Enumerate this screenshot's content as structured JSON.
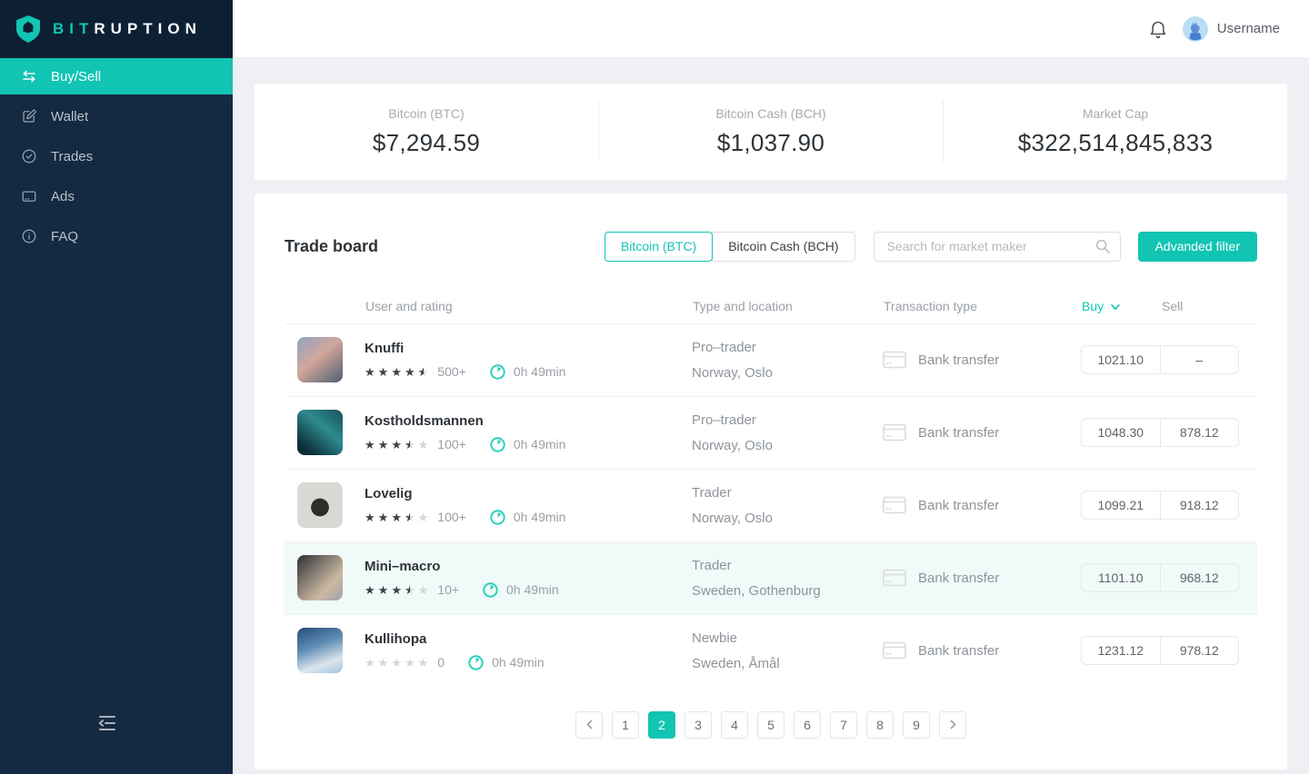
{
  "brand": {
    "primary": "BIT",
    "secondary": "RUPTION"
  },
  "colors": {
    "accent": "#12c4b3",
    "sidebar": "#142a42",
    "row_highlight": "#f0faf8"
  },
  "sidebar": {
    "items": [
      {
        "label": "Buy/Sell",
        "icon": "swap-icon",
        "active": true
      },
      {
        "label": "Wallet",
        "icon": "wallet-edit-icon",
        "active": false
      },
      {
        "label": "Trades",
        "icon": "check-circle-icon",
        "active": false
      },
      {
        "label": "Ads",
        "icon": "ads-card-icon",
        "active": false
      },
      {
        "label": "FAQ",
        "icon": "info-circle-icon",
        "active": false
      }
    ]
  },
  "header": {
    "username": "Username"
  },
  "stats": [
    {
      "label": "Bitcoin (BTC)",
      "value": "$7,294.59"
    },
    {
      "label": "Bitcoin Cash (BCH)",
      "value": "$1,037.90"
    },
    {
      "label": "Market Cap",
      "value": "$322,514,845,833"
    }
  ],
  "trade_board": {
    "title": "Trade board",
    "tabs": [
      {
        "label": "Bitcoin (BTC)",
        "active": true
      },
      {
        "label": "Bitcoin Cash (BCH)",
        "active": false
      }
    ],
    "search_placeholder": "Search for market maker",
    "filter_button": "Advanded filter",
    "columns": {
      "user": "User and rating",
      "type": "Type and location",
      "transaction": "Transaction type",
      "buy": "Buy",
      "sell": "Sell"
    },
    "rows": [
      {
        "user": "Knuffi",
        "rating": 4.5,
        "rating_count": "500+",
        "response_time": "0h 49min",
        "trader_type": "Pro–trader",
        "location": "Norway, Oslo",
        "transaction": "Bank transfer",
        "buy": "1021.10",
        "sell": "–",
        "highlighted": false
      },
      {
        "user": "Kostholdsmannen",
        "rating": 3.5,
        "rating_count": "100+",
        "response_time": "0h 49min",
        "trader_type": "Pro–trader",
        "location": "Norway, Oslo",
        "transaction": "Bank transfer",
        "buy": "1048.30",
        "sell": "878.12",
        "highlighted": false
      },
      {
        "user": "Lovelig",
        "rating": 3.5,
        "rating_count": "100+",
        "response_time": "0h 49min",
        "trader_type": "Trader",
        "location": "Norway, Oslo",
        "transaction": "Bank transfer",
        "buy": "1099.21",
        "sell": "918.12",
        "highlighted": false
      },
      {
        "user": "Mini–macro",
        "rating": 3.5,
        "rating_count": "10+",
        "response_time": "0h 49min",
        "trader_type": "Trader",
        "location": "Sweden, Gothenburg",
        "transaction": "Bank transfer",
        "buy": "1101.10",
        "sell": "968.12",
        "highlighted": true
      },
      {
        "user": "Kullihopa",
        "rating": 0,
        "rating_count": "0",
        "response_time": "0h 49min",
        "trader_type": "Newbie",
        "location": "Sweden, Åmål",
        "transaction": "Bank transfer",
        "buy": "1231.12",
        "sell": "978.12",
        "highlighted": false
      }
    ],
    "pagination": {
      "pages": [
        "1",
        "2",
        "3",
        "4",
        "5",
        "6",
        "7",
        "8",
        "9"
      ],
      "active": "2"
    }
  }
}
